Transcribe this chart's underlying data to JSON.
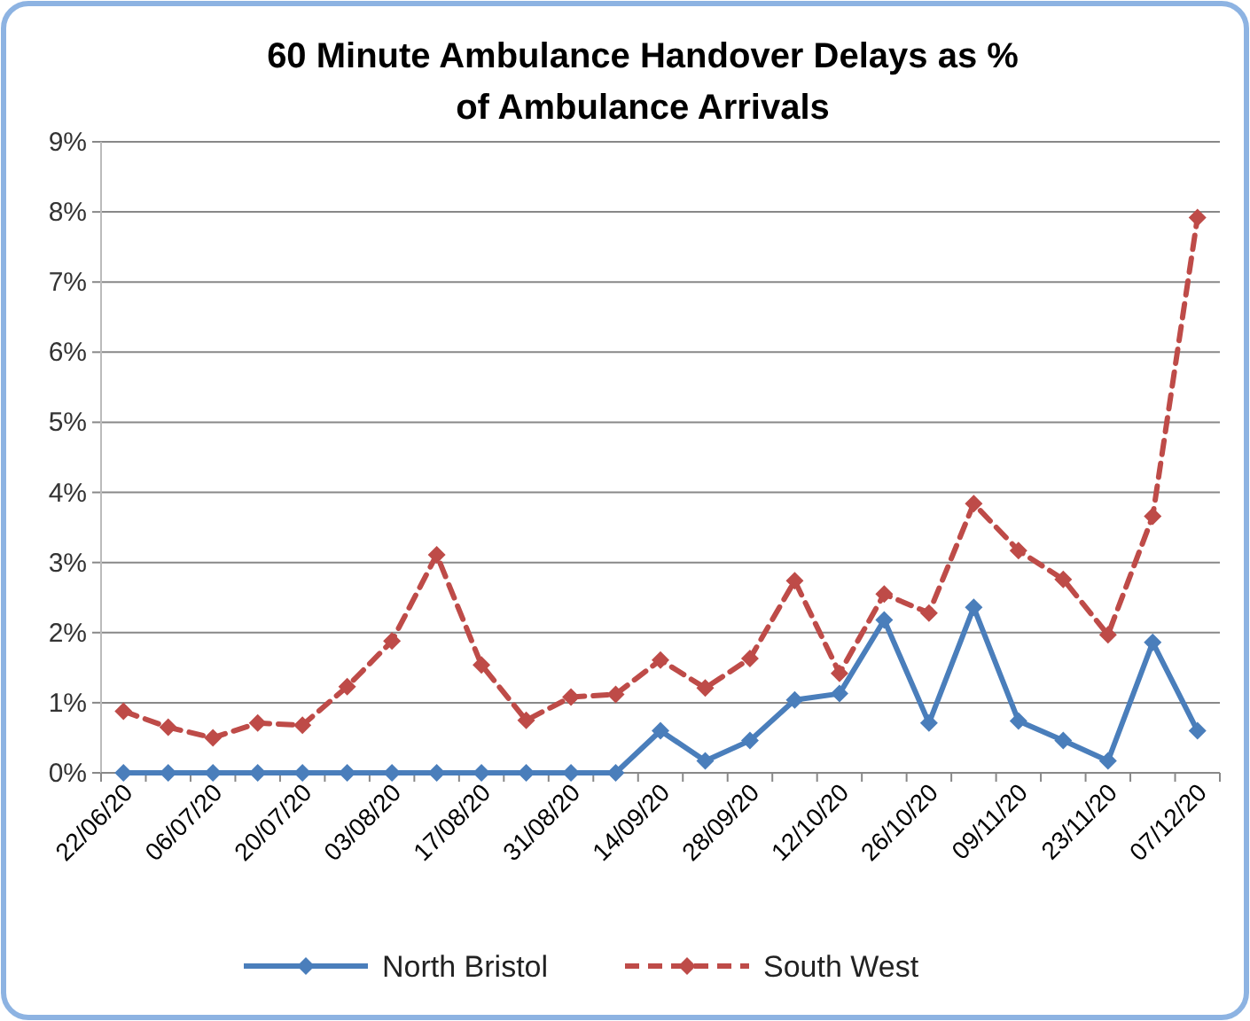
{
  "chart_data": {
    "type": "line",
    "title": "60 Minute Ambulance Handover Delays as % of Ambulance Arrivals",
    "categories": [
      "22/06/20",
      null,
      "06/07/20",
      null,
      "20/07/20",
      null,
      "03/08/20",
      null,
      "17/08/20",
      null,
      "31/08/20",
      null,
      "14/09/20",
      null,
      "28/09/20",
      null,
      "12/10/20",
      null,
      "26/10/20",
      null,
      "09/11/20",
      null,
      "23/11/20",
      null,
      "07/12/20"
    ],
    "series": [
      {
        "name": "North Bristol",
        "color": "#4a7ebb",
        "line_style": "solid",
        "values": [
          0,
          0,
          0,
          0,
          0,
          0,
          0,
          0,
          0,
          0,
          0,
          0,
          0.6,
          0.17,
          0.46,
          1.04,
          1.13,
          2.18,
          0.71,
          2.36,
          0.74,
          0.46,
          0.17,
          1.86,
          0.6
        ]
      },
      {
        "name": "South West",
        "color": "#be4b48",
        "line_style": "dashed",
        "values": [
          0.88,
          0.65,
          0.5,
          0.71,
          0.68,
          1.23,
          1.88,
          3.11,
          1.54,
          0.75,
          1.08,
          1.12,
          1.61,
          1.21,
          1.63,
          2.74,
          1.42,
          2.55,
          2.28,
          3.84,
          3.17,
          2.76,
          1.97,
          3.66,
          7.92
        ]
      }
    ],
    "ylim": [
      0,
      9
    ],
    "yticks": [
      {
        "value": 0,
        "label": "0%"
      },
      {
        "value": 1,
        "label": "1%"
      },
      {
        "value": 2,
        "label": "2%"
      },
      {
        "value": 3,
        "label": "3%"
      },
      {
        "value": 4,
        "label": "4%"
      },
      {
        "value": 5,
        "label": "5%"
      },
      {
        "value": 6,
        "label": "6%"
      },
      {
        "value": 7,
        "label": "7%"
      },
      {
        "value": 8,
        "label": "8%"
      },
      {
        "value": 9,
        "label": "9%"
      }
    ],
    "grid": "y",
    "legend": "bottom",
    "marker": "diamond"
  }
}
